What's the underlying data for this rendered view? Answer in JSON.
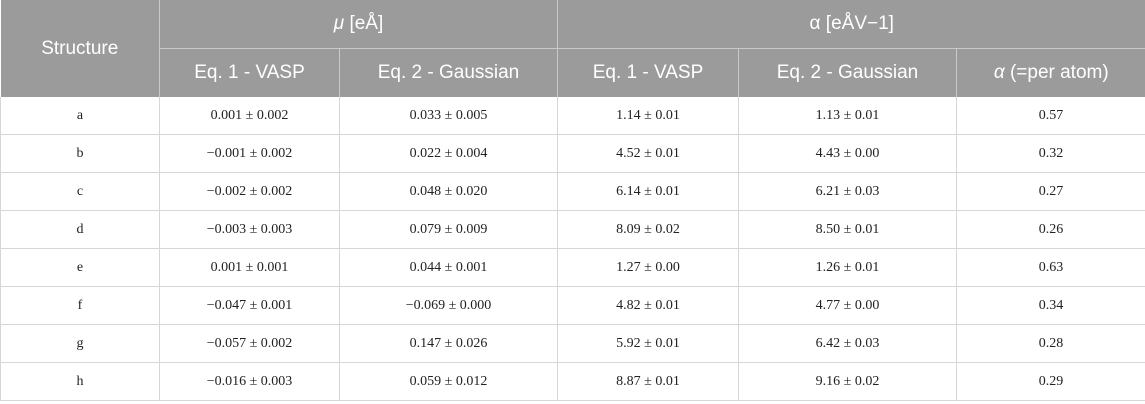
{
  "header": {
    "structure": "Structure",
    "mu_symbol": "μ",
    "mu_unit": " [eÅ]",
    "alpha_group": "α [eÅV−1]",
    "sub": [
      "Eq. 1 - VASP",
      "Eq. 2 - Gaussian",
      "Eq. 1 - VASP",
      "Eq. 2 - Gaussian"
    ],
    "per_atom_symbol": "α",
    "per_atom_rest": " (=per atom)"
  },
  "rows": [
    [
      "a",
      "0.001 ± 0.002",
      "0.033 ± 0.005",
      "1.14 ± 0.01",
      "1.13 ± 0.01",
      "0.57"
    ],
    [
      "b",
      "−0.001 ± 0.002",
      "0.022 ± 0.004",
      "4.52 ± 0.01",
      "4.43 ± 0.00",
      "0.32"
    ],
    [
      "c",
      "−0.002 ± 0.002",
      "0.048 ± 0.020",
      "6.14 ± 0.01",
      "6.21 ± 0.03",
      "0.27"
    ],
    [
      "d",
      "−0.003 ± 0.003",
      "0.079 ± 0.009",
      "8.09 ± 0.02",
      "8.50 ± 0.01",
      "0.26"
    ],
    [
      "e",
      "0.001 ± 0.001",
      "0.044 ± 0.001",
      "1.27 ± 0.00",
      "1.26 ± 0.01",
      "0.63"
    ],
    [
      "f",
      "−0.047 ± 0.001",
      "−0.069 ± 0.000",
      "4.82 ± 0.01",
      "4.77 ± 0.00",
      "0.34"
    ],
    [
      "g",
      "−0.057 ± 0.002",
      "0.147 ± 0.026",
      "5.92 ± 0.01",
      "6.42 ± 0.03",
      "0.28"
    ],
    [
      "h",
      "−0.016 ± 0.003",
      "0.059 ± 0.012",
      "8.87 ± 0.01",
      "9.16 ± 0.02",
      "0.29"
    ]
  ]
}
